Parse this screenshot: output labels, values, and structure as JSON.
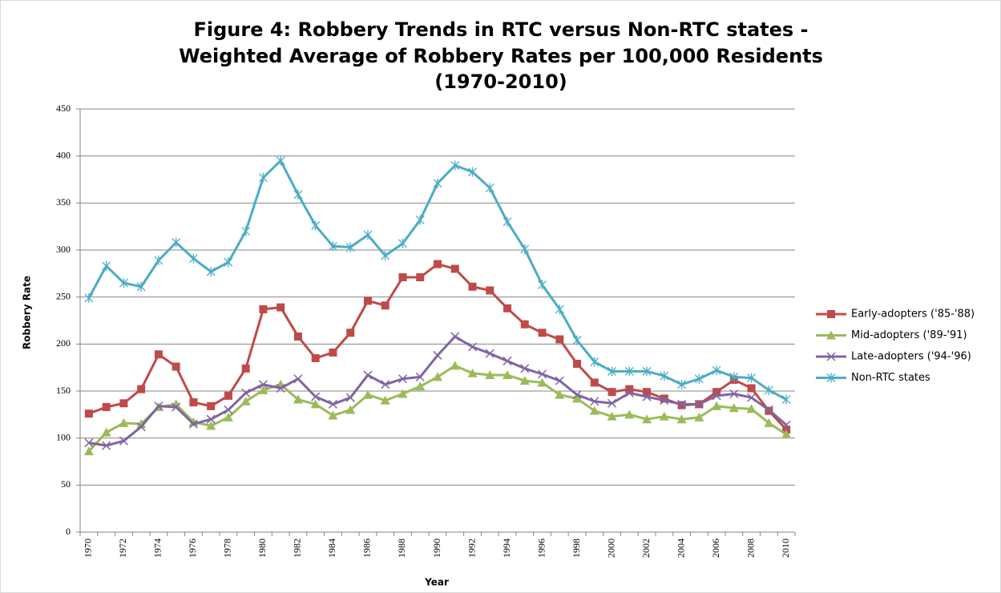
{
  "chart_data": {
    "type": "line",
    "title": [
      "Figure 4: Robbery Trends in RTC versus Non-RTC states -",
      "Weighted Average of Robbery Rates per 100,000 Residents",
      "(1970-2010)"
    ],
    "xlabel": "Year",
    "ylabel": "Robbery Rate",
    "categories": [
      "1970",
      null,
      "1972",
      null,
      "1974",
      null,
      "1976",
      null,
      "1978",
      null,
      "1980",
      null,
      "1982",
      null,
      "1984",
      null,
      "1986",
      null,
      "1988",
      null,
      "1990",
      null,
      "1992",
      null,
      "1994",
      null,
      "1996",
      null,
      "1998",
      null,
      "2000",
      null,
      "2002",
      null,
      "2004",
      null,
      "2006",
      null,
      "2008",
      null,
      "2010"
    ],
    "ylim": [
      0,
      450
    ],
    "yticks": [
      0,
      50,
      100,
      150,
      200,
      250,
      300,
      350,
      400,
      450
    ],
    "grid": true,
    "legend": "right",
    "series": [
      {
        "name": "Early-adopters ('85-'88)",
        "color": "#be4b48",
        "marker": "square",
        "values": [
          126,
          133,
          137,
          152,
          189,
          176,
          138,
          134,
          145,
          174,
          237,
          239,
          208,
          185,
          191,
          212,
          246,
          241,
          271,
          271,
          285,
          280,
          261,
          257,
          238,
          221,
          212,
          205,
          179,
          159,
          149,
          152,
          149,
          142,
          135,
          136,
          149,
          162,
          153,
          129,
          109
        ]
      },
      {
        "name": "Mid-adopters ('89-'91)",
        "color": "#9bbb59",
        "marker": "triangle",
        "values": [
          86,
          106,
          116,
          115,
          133,
          136,
          117,
          113,
          122,
          139,
          151,
          157,
          141,
          136,
          124,
          130,
          146,
          140,
          147,
          155,
          165,
          177,
          169,
          167,
          167,
          161,
          159,
          146,
          142,
          129,
          123,
          125,
          120,
          123,
          120,
          122,
          134,
          132,
          131,
          116,
          104
        ]
      },
      {
        "name": "Late-adopters ('94-'96)",
        "color": "#8064a2",
        "marker": "x",
        "values": [
          95,
          92,
          97,
          112,
          134,
          133,
          115,
          120,
          130,
          148,
          157,
          153,
          163,
          144,
          136,
          143,
          167,
          157,
          163,
          165,
          188,
          208,
          197,
          190,
          182,
          174,
          168,
          161,
          146,
          139,
          137,
          148,
          144,
          140,
          136,
          136,
          145,
          147,
          143,
          130,
          114
        ]
      },
      {
        "name": "Non-RTC states",
        "color": "#4bacc6",
        "marker": "star",
        "values": [
          249,
          283,
          265,
          261,
          289,
          308,
          291,
          277,
          287,
          320,
          377,
          395,
          359,
          326,
          304,
          303,
          316,
          294,
          307,
          332,
          371,
          390,
          383,
          366,
          330,
          301,
          263,
          237,
          204,
          181,
          171,
          171,
          171,
          166,
          157,
          163,
          172,
          165,
          164,
          151,
          141
        ]
      }
    ]
  }
}
